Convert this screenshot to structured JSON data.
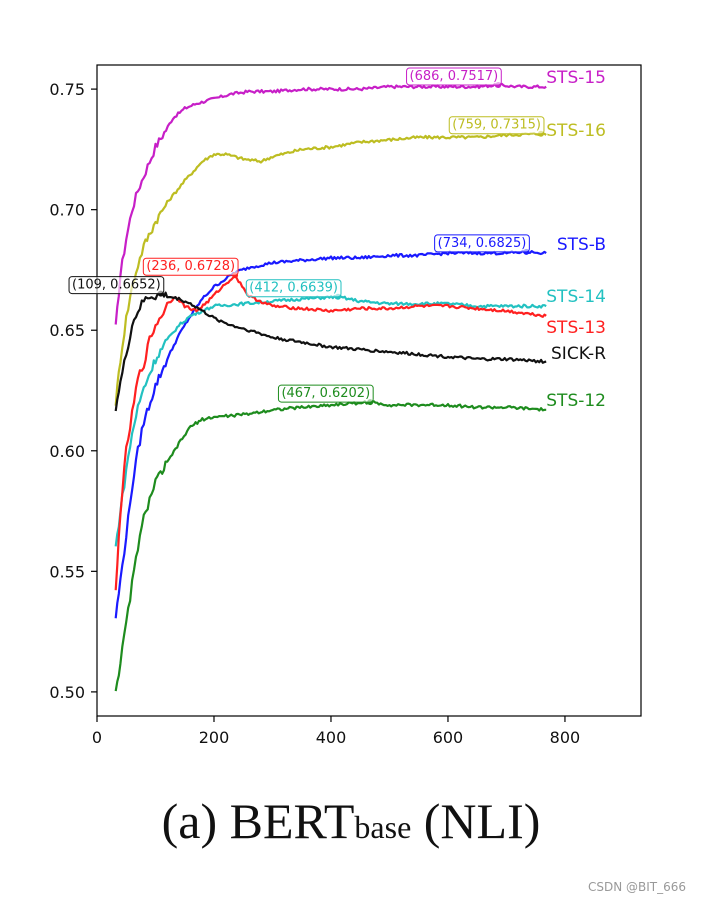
{
  "chart_data": {
    "type": "line",
    "title": "",
    "xlabel": "",
    "ylabel": "",
    "xlim": [
      0,
      930
    ],
    "ylim": [
      0.49,
      0.76
    ],
    "xticks": [
      0,
      200,
      400,
      600,
      800
    ],
    "yticks": [
      0.5,
      0.55,
      0.6,
      0.65,
      0.7,
      0.75
    ],
    "xtick_labels": [
      "0",
      "200",
      "400",
      "600",
      "800"
    ],
    "ytick_labels": [
      "0.50",
      "0.55",
      "0.60",
      "0.65",
      "0.70",
      "0.75"
    ],
    "grid": false,
    "series": [
      {
        "name": "STS-15",
        "color": "#c71fc7",
        "x": [
          32,
          40,
          50,
          60,
          70,
          80,
          90,
          100,
          115,
          130,
          150,
          170,
          200,
          230,
          260,
          300,
          350,
          400,
          450,
          500,
          550,
          600,
          650,
          686,
          720,
          768
        ],
        "y": [
          0.651,
          0.673,
          0.688,
          0.7,
          0.708,
          0.714,
          0.72,
          0.726,
          0.732,
          0.738,
          0.742,
          0.744,
          0.746,
          0.748,
          0.749,
          0.749,
          0.75,
          0.75,
          0.75,
          0.751,
          0.751,
          0.751,
          0.751,
          0.7517,
          0.751,
          0.751
        ]
      },
      {
        "name": "STS-16",
        "color": "#bdbd22",
        "x": [
          32,
          40,
          50,
          60,
          70,
          80,
          100,
          120,
          150,
          180,
          200,
          220,
          250,
          280,
          300,
          350,
          400,
          450,
          500,
          550,
          600,
          650,
          700,
          759,
          768
        ],
        "y": [
          0.62,
          0.638,
          0.655,
          0.668,
          0.677,
          0.685,
          0.695,
          0.703,
          0.712,
          0.72,
          0.723,
          0.723,
          0.721,
          0.72,
          0.722,
          0.725,
          0.726,
          0.728,
          0.729,
          0.73,
          0.73,
          0.73,
          0.731,
          0.7315,
          0.731
        ]
      },
      {
        "name": "STS-B",
        "color": "#1a1aff",
        "x": [
          32,
          40,
          50,
          60,
          70,
          80,
          100,
          120,
          140,
          160,
          180,
          200,
          236,
          260,
          300,
          350,
          400,
          450,
          500,
          550,
          600,
          650,
          700,
          734,
          768
        ],
        "y": [
          0.531,
          0.546,
          0.565,
          0.585,
          0.6,
          0.612,
          0.627,
          0.638,
          0.648,
          0.656,
          0.663,
          0.668,
          0.674,
          0.676,
          0.678,
          0.679,
          0.68,
          0.68,
          0.681,
          0.681,
          0.682,
          0.682,
          0.682,
          0.6825,
          0.682
        ]
      },
      {
        "name": "STS-14",
        "color": "#22c1c1",
        "x": [
          32,
          40,
          50,
          60,
          70,
          80,
          100,
          120,
          140,
          160,
          180,
          200,
          250,
          300,
          350,
          412,
          450,
          500,
          550,
          600,
          650,
          700,
          768
        ],
        "y": [
          0.56,
          0.575,
          0.592,
          0.607,
          0.618,
          0.626,
          0.638,
          0.646,
          0.652,
          0.656,
          0.658,
          0.66,
          0.661,
          0.662,
          0.663,
          0.6639,
          0.662,
          0.661,
          0.661,
          0.661,
          0.66,
          0.66,
          0.66
        ]
      },
      {
        "name": "STS-13",
        "color": "#ff2020",
        "x": [
          32,
          40,
          50,
          60,
          70,
          80,
          90,
          100,
          110,
          120,
          135,
          150,
          170,
          190,
          210,
          236,
          260,
          300,
          350,
          400,
          450,
          500,
          550,
          600,
          650,
          700,
          768
        ],
        "y": [
          0.541,
          0.575,
          0.6,
          0.615,
          0.63,
          0.636,
          0.646,
          0.652,
          0.656,
          0.661,
          0.664,
          0.66,
          0.658,
          0.662,
          0.667,
          0.6728,
          0.664,
          0.66,
          0.659,
          0.658,
          0.659,
          0.659,
          0.66,
          0.66,
          0.659,
          0.658,
          0.656
        ]
      },
      {
        "name": "SICK-R",
        "color": "#111111",
        "x": [
          32,
          40,
          50,
          60,
          70,
          80,
          90,
          100,
          109,
          120,
          140,
          160,
          180,
          200,
          230,
          260,
          300,
          350,
          400,
          450,
          500,
          550,
          600,
          650,
          700,
          768
        ],
        "y": [
          0.618,
          0.628,
          0.64,
          0.652,
          0.658,
          0.662,
          0.664,
          0.664,
          0.6652,
          0.664,
          0.663,
          0.661,
          0.658,
          0.655,
          0.652,
          0.65,
          0.647,
          0.645,
          0.643,
          0.642,
          0.641,
          0.64,
          0.639,
          0.638,
          0.638,
          0.637
        ]
      },
      {
        "name": "STS-12",
        "color": "#1e8c1e",
        "x": [
          32,
          40,
          50,
          60,
          70,
          80,
          90,
          100,
          120,
          140,
          160,
          180,
          200,
          250,
          300,
          350,
          400,
          467,
          500,
          550,
          600,
          650,
          700,
          768
        ],
        "y": [
          0.501,
          0.512,
          0.528,
          0.545,
          0.56,
          0.572,
          0.58,
          0.587,
          0.595,
          0.603,
          0.61,
          0.613,
          0.614,
          0.615,
          0.617,
          0.618,
          0.619,
          0.6202,
          0.619,
          0.619,
          0.619,
          0.618,
          0.618,
          0.617
        ]
      }
    ],
    "annotations": [
      {
        "series": "STS-15",
        "x": 686,
        "y": 0.7517,
        "text": "(686, 0.7517)"
      },
      {
        "series": "STS-16",
        "x": 759,
        "y": 0.7315,
        "text": "(759, 0.7315)"
      },
      {
        "series": "STS-B",
        "x": 734,
        "y": 0.6825,
        "text": "(734, 0.6825)"
      },
      {
        "series": "STS-13",
        "x": 236,
        "y": 0.6728,
        "text": "(236, 0.6728)"
      },
      {
        "series": "SICK-R",
        "x": 109,
        "y": 0.6652,
        "text": "(109, 0.6652)"
      },
      {
        "series": "STS-14",
        "x": 412,
        "y": 0.6639,
        "text": "(412, 0.6639)"
      },
      {
        "series": "STS-12",
        "x": 467,
        "y": 0.6202,
        "text": "(467, 0.6202)"
      }
    ],
    "series_label_order": [
      "STS-15",
      "STS-16",
      "STS-B",
      "STS-14",
      "STS-13",
      "SICK-R",
      "STS-12"
    ]
  },
  "caption": {
    "prefix": "(a) BERT",
    "subscript": "base",
    "suffix": " (NLI)"
  },
  "watermark": "CSDN @BIT_666"
}
